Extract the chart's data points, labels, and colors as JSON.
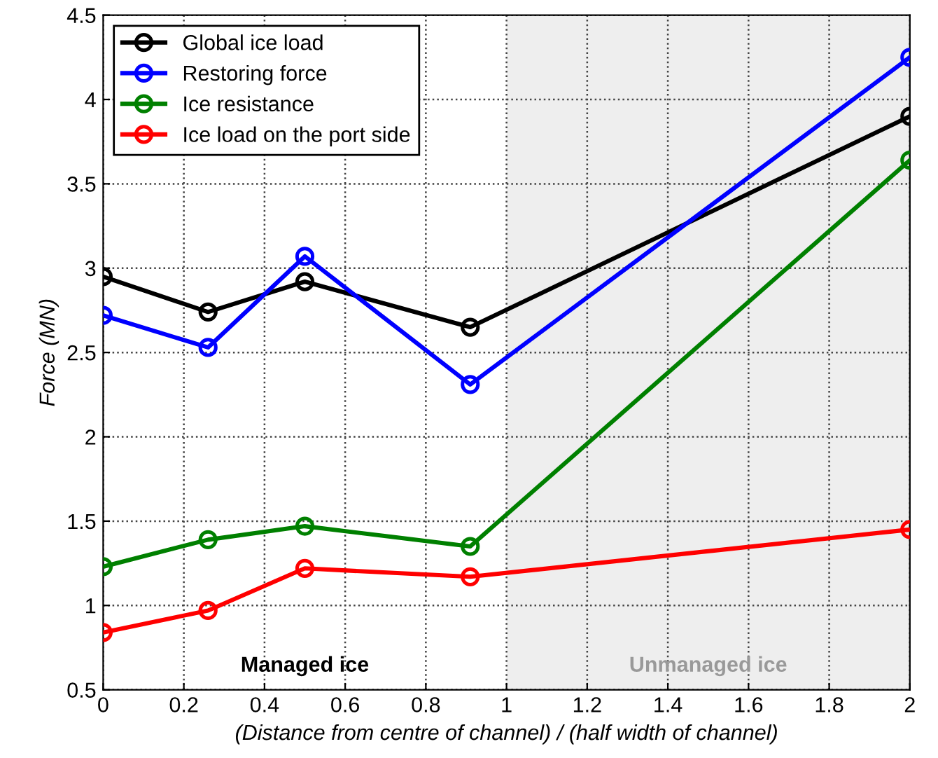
{
  "chart_data": {
    "type": "line",
    "xlabel": "(Distance from centre of channel) / (half width of channel)",
    "ylabel": "Force (MN)",
    "x": [
      0,
      0.26,
      0.5,
      0.91,
      2
    ],
    "series": [
      {
        "name": "Global ice load",
        "color": "#000000",
        "values": [
          2.95,
          2.74,
          2.92,
          2.65,
          3.9
        ]
      },
      {
        "name": "Restoring force",
        "color": "#0000ff",
        "values": [
          2.72,
          2.53,
          3.07,
          2.31,
          4.25
        ]
      },
      {
        "name": "Ice resistance",
        "color": "#008000",
        "values": [
          1.23,
          1.39,
          1.47,
          1.35,
          3.64
        ]
      },
      {
        "name": "Ice load on the port side",
        "color": "#ff0000",
        "values": [
          0.84,
          0.97,
          1.22,
          1.17,
          1.45
        ]
      }
    ],
    "xlim": [
      0,
      2
    ],
    "xticks": [
      0,
      0.2,
      0.4,
      0.6,
      0.8,
      1,
      1.2,
      1.4,
      1.6,
      1.8,
      2
    ],
    "ylim": [
      0.5,
      4.5
    ],
    "yticks": [
      0.5,
      1,
      1.5,
      2,
      2.5,
      3,
      3.5,
      4,
      4.5
    ],
    "bands": [
      {
        "axis": "x",
        "from": 1,
        "to": 2,
        "label": "Unmanaged ice",
        "color": "#eeeeee"
      }
    ],
    "annotations": [
      "Managed ice"
    ],
    "grid": true,
    "legend": "top left",
    "marker": "circle",
    "line_style": "solid"
  }
}
